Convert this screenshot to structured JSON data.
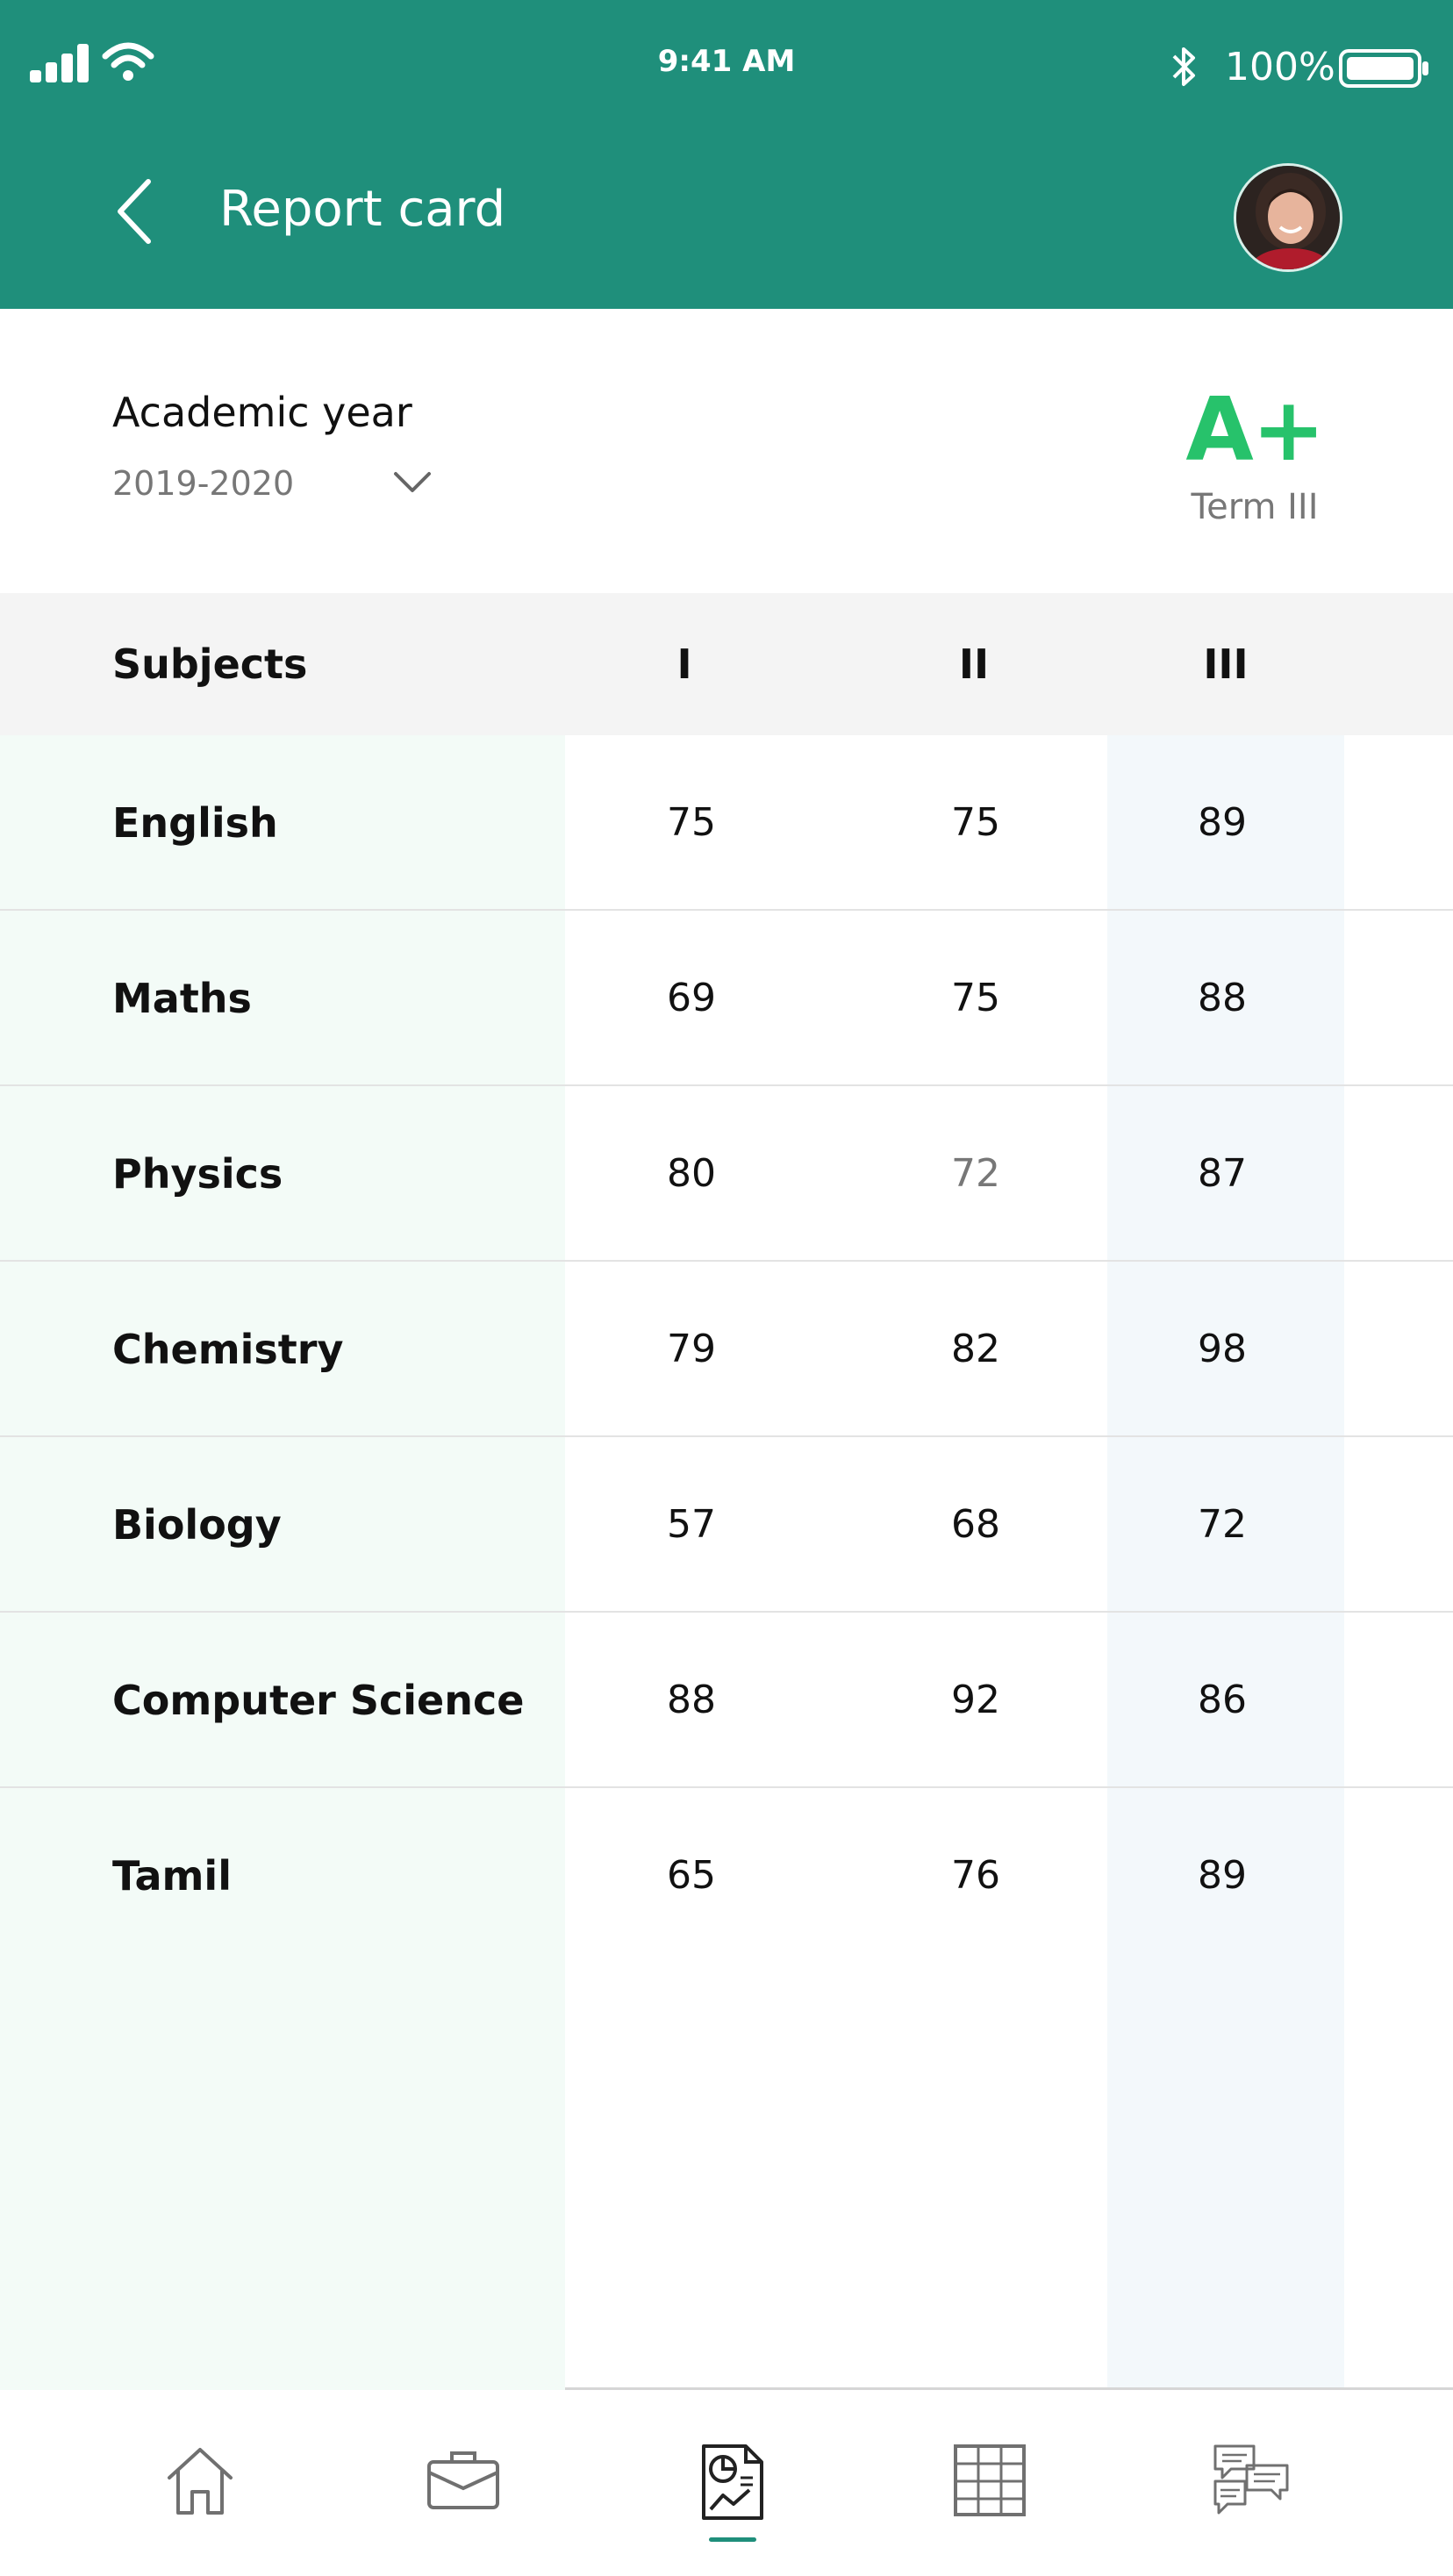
{
  "status_bar": {
    "time": "9:41 AM",
    "battery": "100%"
  },
  "header": {
    "title": "Report card"
  },
  "academic": {
    "label": "Academic year",
    "year": "2019-2020",
    "grade": "A+",
    "term": "Term III"
  },
  "table": {
    "headers": {
      "subject": "Subjects",
      "t1": "I",
      "t2": "II",
      "t3": "III"
    },
    "rows": [
      {
        "subject": "English",
        "t1": "75",
        "t2": "75",
        "t3": "89"
      },
      {
        "subject": "Maths",
        "t1": "69",
        "t2": "75",
        "t3": "88"
      },
      {
        "subject": "Physics",
        "t1": "80",
        "t2": "72",
        "t3": "87"
      },
      {
        "subject": "Chemistry",
        "t1": "79",
        "t2": "82",
        "t3": "98"
      },
      {
        "subject": "Biology",
        "t1": "57",
        "t2": "68",
        "t3": "72"
      },
      {
        "subject": "Computer Science",
        "t1": "88",
        "t2": "92",
        "t3": "86"
      },
      {
        "subject": "Tamil",
        "t1": "65",
        "t2": "76",
        "t3": "89"
      }
    ]
  },
  "nav": {
    "items": [
      "home-icon",
      "briefcase-icon",
      "report-icon",
      "timetable-icon",
      "chat-icon"
    ],
    "active": "report-icon"
  },
  "colors": {
    "header": "#1f8f7b",
    "grade": "#27c26b",
    "subject_col": "#f3fbf7",
    "term3_col": "#f3f8fb"
  }
}
